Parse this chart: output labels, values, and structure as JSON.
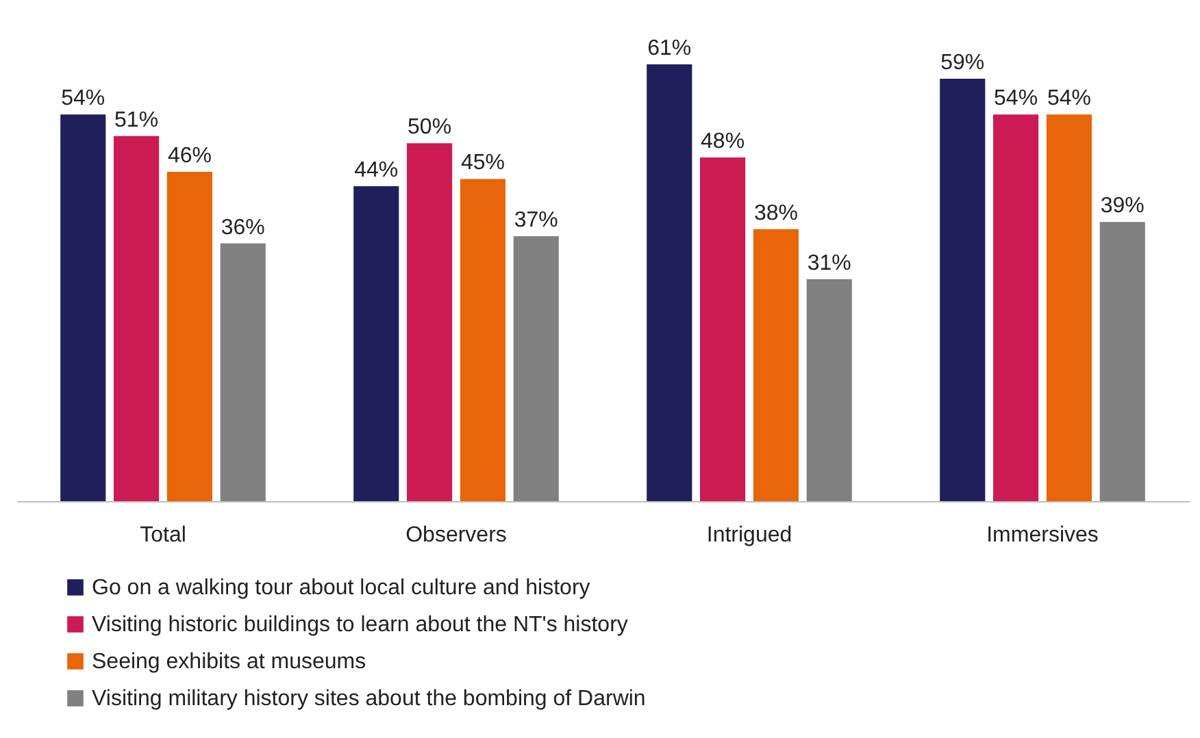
{
  "chart_data": {
    "type": "bar",
    "categories": [
      "Total",
      "Observers",
      "Intrigued",
      "Immersives"
    ],
    "ylim": [
      0,
      70
    ],
    "legend": "bottom",
    "series": [
      {
        "name": "Go on a walking tour about local culture and history",
        "color": "#201f5c",
        "values": [
          54,
          44,
          61,
          59
        ],
        "value_labels": [
          "54%",
          "44%",
          "61%",
          "59%"
        ]
      },
      {
        "name": "Visiting historic buildings to learn about the NT's history",
        "color": "#cc1a53",
        "values": [
          51,
          50,
          48,
          54
        ],
        "value_labels": [
          "51%",
          "50%",
          "48%",
          "54%"
        ]
      },
      {
        "name": "Seeing exhibits at museums",
        "color": "#e8650a",
        "values": [
          46,
          45,
          38,
          54
        ],
        "value_labels": [
          "46%",
          "45%",
          "38%",
          "54%"
        ]
      },
      {
        "name": "Visiting military history sites about the bombing of Darwin",
        "color": "#808080",
        "values": [
          36,
          37,
          31,
          39
        ],
        "value_labels": [
          "36%",
          "37%",
          "31%",
          "39%"
        ]
      }
    ]
  }
}
